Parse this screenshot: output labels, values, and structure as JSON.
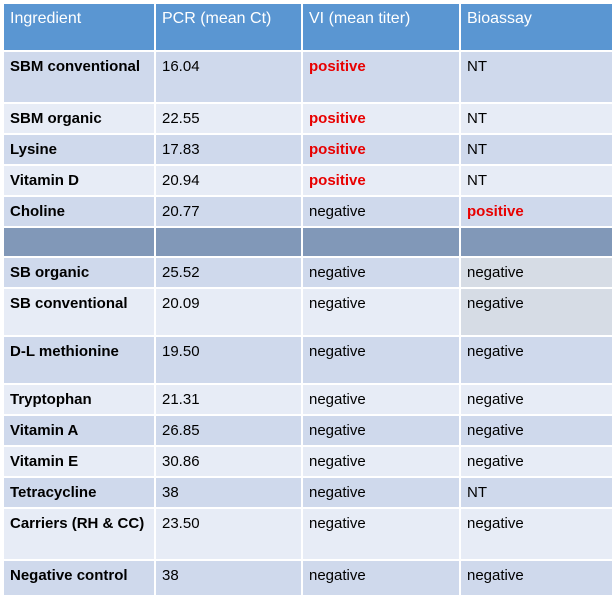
{
  "headers": [
    "Ingredient",
    "PCR (mean Ct)",
    "VI (mean titer)",
    "Bioassay"
  ],
  "rows": [
    [
      "SBM conventional",
      "16.04",
      "positive",
      "NT"
    ],
    [
      "SBM organic",
      "22.55",
      "positive",
      "NT"
    ],
    [
      "Lysine",
      "17.83",
      "positive",
      "NT"
    ],
    [
      "Vitamin D",
      "20.94",
      "positive",
      "NT"
    ],
    [
      "Choline",
      "20.77",
      "negative",
      "positive"
    ],
    [
      "",
      "",
      "",
      ""
    ],
    [
      "SB organic",
      "25.52",
      "negative",
      "negative"
    ],
    [
      "SB conventional",
      "20.09",
      "negative",
      "negative"
    ],
    [
      "D-L methionine",
      "19.50",
      "negative",
      "negative"
    ],
    [
      "Tryptophan",
      "21.31",
      "negative",
      "negative"
    ],
    [
      "Vitamin A",
      "26.85",
      "negative",
      "negative"
    ],
    [
      "Vitamin E",
      "30.86",
      "negative",
      "negative"
    ],
    [
      "Tetracycline",
      "38",
      "negative",
      "NT"
    ],
    [
      "Carriers (RH & CC)",
      "23.50",
      "negative",
      "negative"
    ],
    [
      "Negative control",
      "38",
      "negative",
      "negative"
    ]
  ],
  "colors": {
    "header": "#5a96d2",
    "row_dark": "#cfd9ec",
    "row_light": "#e7ecf6",
    "separator": "#8198b8",
    "positive_text": "#e80000"
  }
}
